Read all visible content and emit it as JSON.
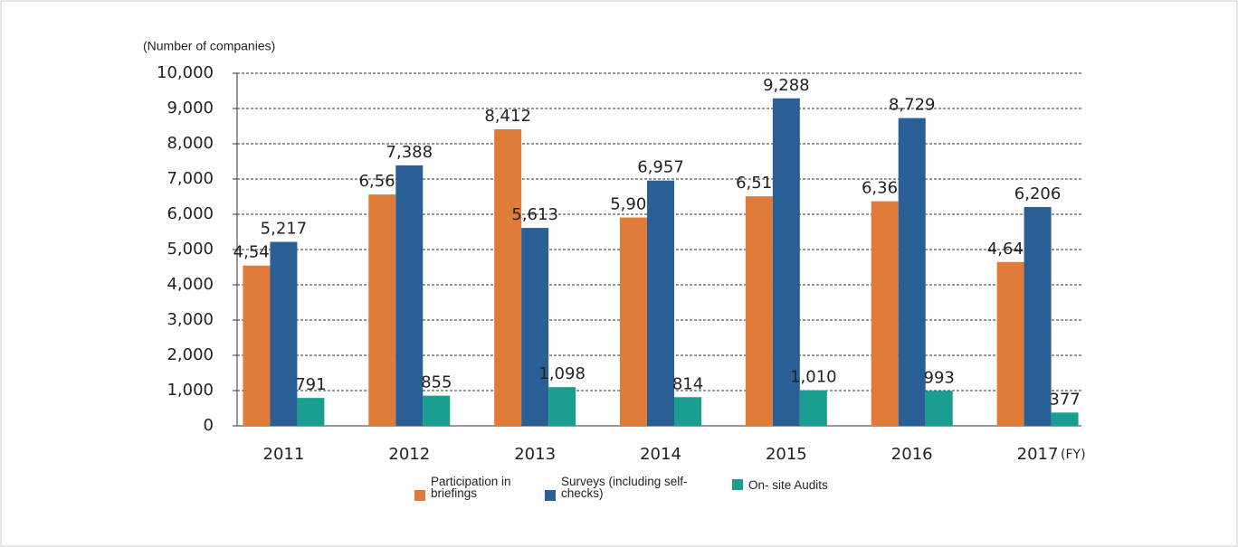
{
  "chart_data": {
    "type": "bar",
    "y_axis_label": "(Number of companies)",
    "x_axis_label": "(FY)",
    "categories": [
      "2011",
      "2012",
      "2013",
      "2014",
      "2015",
      "2016",
      "2017"
    ],
    "series": [
      {
        "name": "Participation in briefings",
        "color": "#e07b39",
        "values": [
          4545,
          6561,
          8412,
          5908,
          6510,
          6369,
          4647
        ],
        "value_labels": [
          "4,545",
          "6,561",
          "8,412",
          "5,908",
          "6,510",
          "6,369",
          "4,647"
        ]
      },
      {
        "name": "Surveys (including self-checks)",
        "color": "#2a5f96",
        "values": [
          5217,
          7388,
          5613,
          6957,
          9288,
          8729,
          6206
        ],
        "value_labels": [
          "5,217",
          "7,388",
          "5,613",
          "6,957",
          "9,288",
          "8,729",
          "6,206"
        ]
      },
      {
        "name": "On- site Audits",
        "color": "#1a9e8f",
        "values": [
          791,
          855,
          1098,
          814,
          1010,
          993,
          377
        ],
        "value_labels": [
          "791",
          "855",
          "1,098",
          "814",
          "1,010",
          "993",
          "377"
        ]
      }
    ],
    "ylim": [
      0,
      10000
    ],
    "yticks": [
      0,
      {
        "value": 1000,
        "label": "1,000"
      },
      {
        "value": 2000,
        "label": "2,000"
      },
      {
        "value": 3000,
        "label": "3,000"
      },
      {
        "value": 4000,
        "label": "4,000"
      },
      {
        "value": 5000,
        "label": "5,000"
      },
      {
        "value": 6000,
        "label": "6,000"
      },
      {
        "value": 7000,
        "label": "7,000"
      },
      {
        "value": 8000,
        "label": "8,000"
      },
      {
        "value": 9000,
        "label": "9,000"
      },
      {
        "value": 10000,
        "label": "10,000"
      }
    ],
    "grid": true
  }
}
